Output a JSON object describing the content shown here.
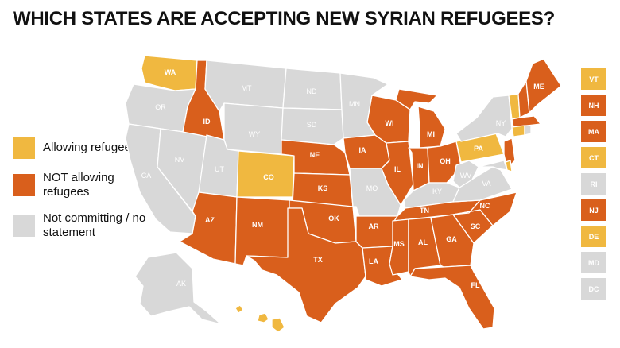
{
  "title": "WHICH STATES ARE ACCEPTING NEW SYRIAN REFUGEES?",
  "colors": {
    "allowing": "#F0B840",
    "not_allowing": "#D95F1C",
    "not_committing": "#D8D8D8"
  },
  "legend": [
    {
      "status": "allowing",
      "label": "Allowing refugees"
    },
    {
      "status": "not_allowing",
      "label": "NOT allowing refugees"
    },
    {
      "status": "not_committing",
      "label": "Not committing / no statement"
    }
  ],
  "states": [
    {
      "abbr": "WA",
      "status": "allowing"
    },
    {
      "abbr": "OR",
      "status": "not_committing"
    },
    {
      "abbr": "CA",
      "status": "not_committing"
    },
    {
      "abbr": "NV",
      "status": "not_committing"
    },
    {
      "abbr": "ID",
      "status": "not_allowing"
    },
    {
      "abbr": "MT",
      "status": "not_committing"
    },
    {
      "abbr": "WY",
      "status": "not_committing"
    },
    {
      "abbr": "UT",
      "status": "not_committing"
    },
    {
      "abbr": "CO",
      "status": "allowing"
    },
    {
      "abbr": "AZ",
      "status": "not_allowing"
    },
    {
      "abbr": "NM",
      "status": "not_allowing"
    },
    {
      "abbr": "ND",
      "status": "not_committing"
    },
    {
      "abbr": "SD",
      "status": "not_committing"
    },
    {
      "abbr": "NE",
      "status": "not_allowing"
    },
    {
      "abbr": "KS",
      "status": "not_allowing"
    },
    {
      "abbr": "OK",
      "status": "not_allowing"
    },
    {
      "abbr": "TX",
      "status": "not_allowing"
    },
    {
      "abbr": "MN",
      "status": "not_committing"
    },
    {
      "abbr": "IA",
      "status": "not_allowing"
    },
    {
      "abbr": "MO",
      "status": "not_committing"
    },
    {
      "abbr": "AR",
      "status": "not_allowing"
    },
    {
      "abbr": "LA",
      "status": "not_allowing"
    },
    {
      "abbr": "WI",
      "status": "not_allowing"
    },
    {
      "abbr": "IL",
      "status": "not_allowing"
    },
    {
      "abbr": "MI",
      "status": "not_allowing"
    },
    {
      "abbr": "IN",
      "status": "not_allowing"
    },
    {
      "abbr": "OH",
      "status": "not_allowing"
    },
    {
      "abbr": "KY",
      "status": "not_committing"
    },
    {
      "abbr": "TN",
      "status": "not_allowing"
    },
    {
      "abbr": "MS",
      "status": "not_allowing"
    },
    {
      "abbr": "AL",
      "status": "not_allowing"
    },
    {
      "abbr": "GA",
      "status": "not_allowing"
    },
    {
      "abbr": "FL",
      "status": "not_allowing"
    },
    {
      "abbr": "SC",
      "status": "not_allowing"
    },
    {
      "abbr": "NC",
      "status": "not_allowing"
    },
    {
      "abbr": "VA",
      "status": "not_committing"
    },
    {
      "abbr": "WV",
      "status": "not_committing"
    },
    {
      "abbr": "PA",
      "status": "allowing"
    },
    {
      "abbr": "NY",
      "status": "not_committing"
    },
    {
      "abbr": "ME",
      "status": "not_allowing"
    },
    {
      "abbr": "AK",
      "status": "not_committing"
    },
    {
      "abbr": "HI",
      "status": "allowing"
    }
  ],
  "small_states": [
    {
      "abbr": "VT",
      "status": "allowing"
    },
    {
      "abbr": "NH",
      "status": "not_allowing"
    },
    {
      "abbr": "MA",
      "status": "not_allowing"
    },
    {
      "abbr": "CT",
      "status": "allowing"
    },
    {
      "abbr": "RI",
      "status": "not_committing"
    },
    {
      "abbr": "NJ",
      "status": "not_allowing"
    },
    {
      "abbr": "DE",
      "status": "allowing"
    },
    {
      "abbr": "MD",
      "status": "not_committing"
    },
    {
      "abbr": "DC",
      "status": "not_committing"
    }
  ]
}
